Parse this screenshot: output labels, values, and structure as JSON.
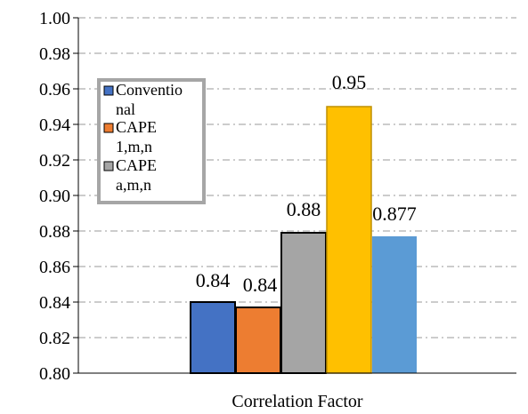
{
  "chart_data": {
    "type": "bar",
    "categories": [
      "Correlation Factor"
    ],
    "series": [
      {
        "name": "Conventional",
        "legend_lines": [
          "Conventio",
          "nal"
        ],
        "value": 0.84,
        "label": "0.84",
        "color": "#4472C4"
      },
      {
        "name": "CAPE 1,m,n",
        "legend_lines": [
          "CAPE",
          "1,m,n"
        ],
        "value": 0.837,
        "label": "0.84",
        "color": "#ED7D31"
      },
      {
        "name": "CAPE a,m,n",
        "legend_lines": [
          "CAPE",
          "a,m,n"
        ],
        "value": 0.879,
        "label": "0.88",
        "color": "#A5A5A5"
      },
      {
        "name": "",
        "legend_lines": [],
        "value": 0.95,
        "label": "0.95",
        "color": "#FFC000"
      },
      {
        "name": "",
        "legend_lines": [],
        "value": 0.877,
        "label": "0.877",
        "color": "#5B9BD5"
      }
    ],
    "yticks": [
      "0.80",
      "0.82",
      "0.84",
      "0.86",
      "0.88",
      "0.90",
      "0.92",
      "0.94",
      "0.96",
      "0.98",
      "1.00"
    ],
    "ylim": [
      0.8,
      1.0
    ],
    "xlabel": "Correlation Factor",
    "title": "",
    "grid": "dashed horizontal",
    "legend_position": "upper-left inside plot"
  }
}
